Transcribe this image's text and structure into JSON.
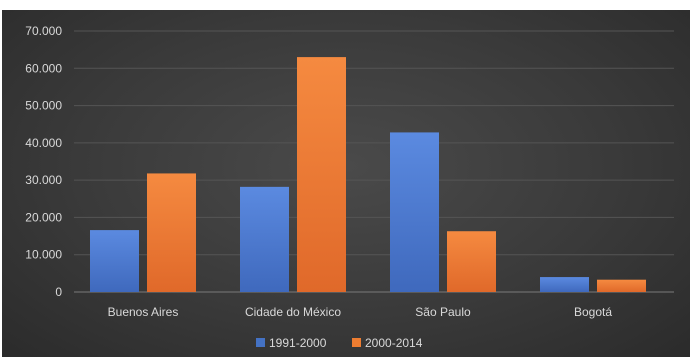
{
  "chart_data": {
    "type": "bar",
    "categories": [
      "Buenos Aires",
      "Cidade do México",
      "São Paulo",
      "Bogotá"
    ],
    "series": [
      {
        "name": "1991-2000",
        "color": "#4472c4",
        "values": [
          16600,
          28200,
          42800,
          4000
        ]
      },
      {
        "name": "2000-2014",
        "color": "#ed7d31",
        "values": [
          31800,
          63000,
          16300,
          3300
        ]
      }
    ],
    "ylim": [
      0,
      70000
    ],
    "yticks": [
      0,
      10000,
      20000,
      30000,
      40000,
      50000,
      60000,
      70000
    ],
    "ytick_labels": [
      "0",
      "10.000",
      "20.000",
      "30.000",
      "40.000",
      "50.000",
      "60.000",
      "70.000"
    ],
    "grid": true,
    "legend": "bottom"
  }
}
